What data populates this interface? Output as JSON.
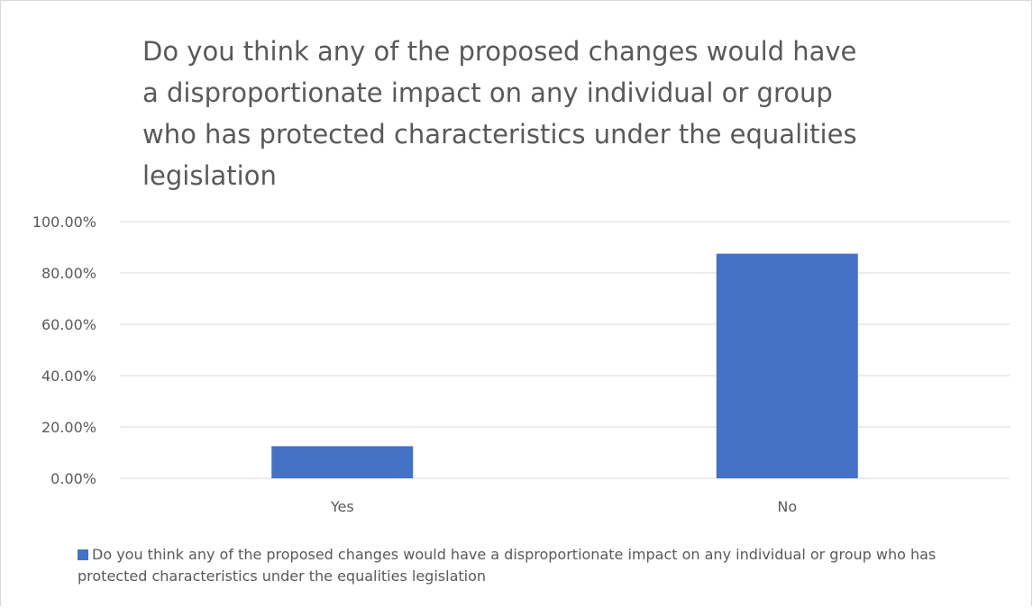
{
  "chart_data": {
    "type": "bar",
    "title": "Do you think any of the proposed changes would have a disproportionate impact on any individual or group who has protected characteristics under the equalities legislation",
    "categories": [
      "Yes",
      "No"
    ],
    "series": [
      {
        "name": "Do you think any of the proposed changes would have a disproportionate impact on any individual or group who has protected characteristics under the equalities legislation",
        "values": [
          0.125,
          0.875
        ],
        "color": "#4472C4"
      }
    ],
    "yticks": [
      "0.00%",
      "20.00%",
      "40.00%",
      "60.00%",
      "80.00%",
      "100.00%"
    ],
    "ylim": [
      0,
      1
    ],
    "grid": true,
    "legend_position": "bottom"
  }
}
